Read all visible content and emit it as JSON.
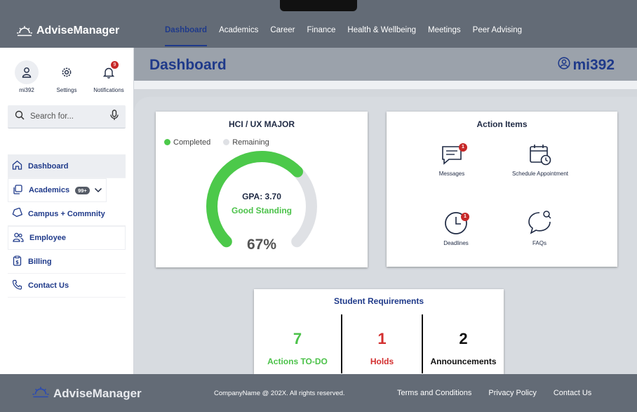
{
  "brand": {
    "name": "AdviseManager"
  },
  "nav": {
    "items": [
      {
        "label": "Dashboard"
      },
      {
        "label": "Academics"
      },
      {
        "label": "Career"
      },
      {
        "label": "Finance"
      },
      {
        "label": "Health & Wellbeing"
      },
      {
        "label": "Meetings"
      },
      {
        "label": "Peer Advising"
      }
    ],
    "active": "Dashboard"
  },
  "sidebar": {
    "quick": [
      {
        "label": "mi392",
        "icon": "user-icon"
      },
      {
        "label": "Settings",
        "icon": "gear-icon"
      },
      {
        "label": "Notifications",
        "icon": "bell-icon",
        "badge": "9"
      }
    ],
    "search": {
      "placeholder": "Search for..."
    },
    "items": [
      {
        "label": "Dashboard",
        "icon": "home-icon"
      },
      {
        "label": "Academics",
        "icon": "copy-icon",
        "badge": "99+"
      },
      {
        "label": "Campus + Commnity",
        "icon": "tag-icon"
      },
      {
        "label": "Employee",
        "icon": "people-icon"
      },
      {
        "label": "Billing",
        "icon": "clipboard-dollar-icon"
      },
      {
        "label": "Contact Us",
        "icon": "phone-icon"
      }
    ]
  },
  "header": {
    "title": "Dashboard",
    "user": "mi392"
  },
  "major_card": {
    "title": "HCI / UX MAJOR",
    "legend": [
      "Completed",
      "Remaining"
    ],
    "gpa": "GPA: 3.70",
    "standing": "Good Standing",
    "progress_label": "67%",
    "progress": 0.67,
    "colors": {
      "completed": "#4cc94a",
      "remaining": "#dfe1e5"
    }
  },
  "actions": {
    "title": "Action Items",
    "items": [
      {
        "label": "Messages",
        "badge": "1"
      },
      {
        "label": "Schedule Appointment"
      },
      {
        "label": "Deadlines",
        "badge": "1"
      },
      {
        "label": "FAQs"
      }
    ]
  },
  "requirements": {
    "title": "Student Requirements",
    "cells": [
      {
        "value": "7",
        "label": "Actions TO-DO",
        "color": "#4cc24a"
      },
      {
        "value": "1",
        "label": "Holds",
        "color": "#d32f2f"
      },
      {
        "value": "2",
        "label": "Announcements",
        "color": "#111111"
      }
    ]
  },
  "footer": {
    "brand": "AdviseManager",
    "copyright": "CompanyName @ 202X. All rights reserved.",
    "links": [
      "Terms and Conditions",
      "Privacy Policy",
      "Contact Us"
    ]
  }
}
